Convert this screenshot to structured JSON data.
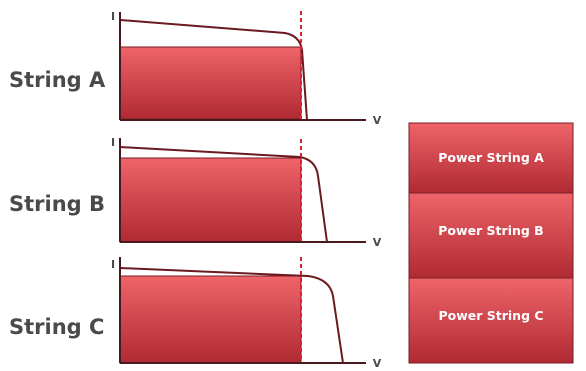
{
  "strings": [
    {
      "label": "String A",
      "y_axis": "I",
      "x_axis": "V"
    },
    {
      "label": "String B",
      "y_axis": "I",
      "x_axis": "V"
    },
    {
      "label": "String C",
      "y_axis": "I",
      "x_axis": "V"
    }
  ],
  "power_blocks": [
    {
      "label": "Power String A"
    },
    {
      "label": "Power String B"
    },
    {
      "label": "Power String C"
    }
  ],
  "colors": {
    "fill_top": "#ee6469",
    "fill_bottom": "#b02a33",
    "curve": "#6b1a1f",
    "axis": "#4a1a1e",
    "mpp_marker": "#e02030",
    "label": "#4a4a4a",
    "power_text": "#ffffff"
  }
}
